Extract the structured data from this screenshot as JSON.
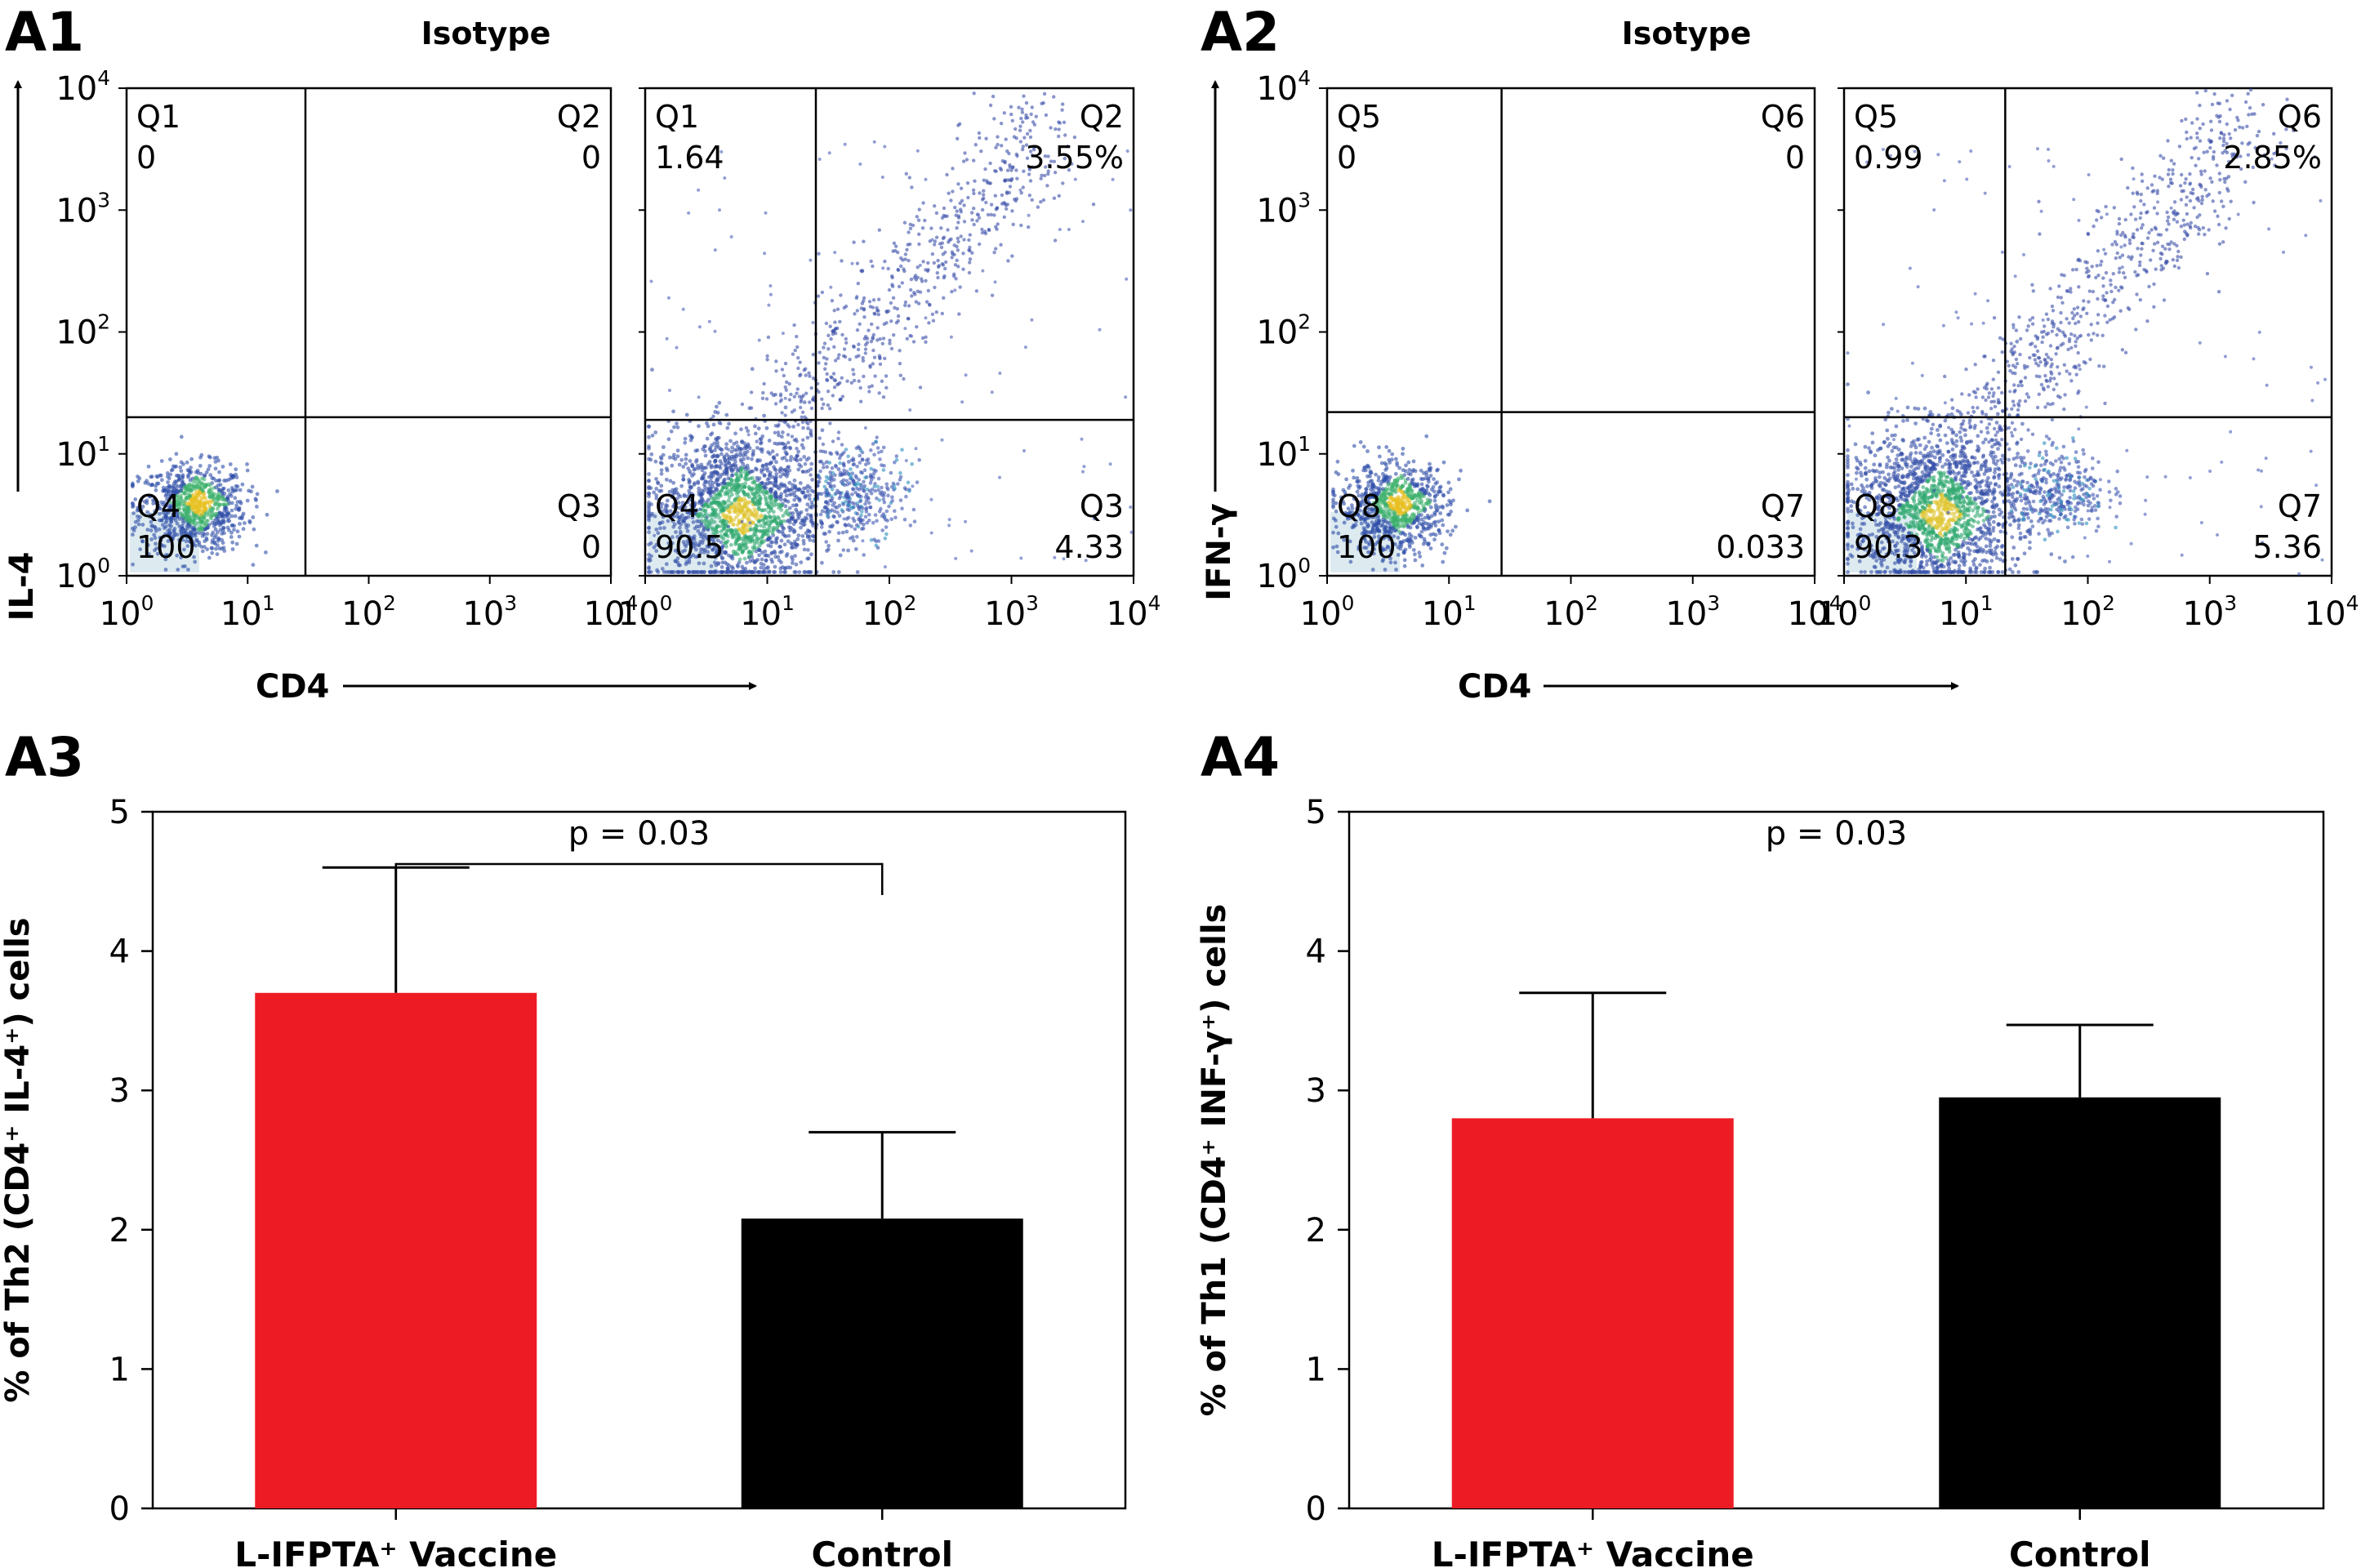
{
  "panels": {
    "a1": "A1",
    "a2": "A2",
    "a3": "A3",
    "a4": "A4"
  },
  "flow_titles": {
    "a1": "Isotype",
    "a2": "Isotype"
  },
  "flow_axes": {
    "a1_y": "IL-4",
    "a1_x": "CD4",
    "a2_y": "IFN-γ",
    "a2_x": "CD4"
  },
  "chart_data": [
    {
      "id": "A1-isotype",
      "type": "scatter",
      "title": "Isotype",
      "xlabel": "CD4",
      "ylabel": "IL-4",
      "xscale": "log",
      "yscale": "log",
      "xlim": [
        1,
        10000
      ],
      "ylim": [
        1,
        10000
      ],
      "gates": {
        "x": 30,
        "y": 20
      },
      "quadrants": [
        {
          "name": "Q1",
          "value": "0",
          "pos": "top-left"
        },
        {
          "name": "Q2",
          "value": "0",
          "pos": "top-right"
        },
        {
          "name": "Q4",
          "value": "100",
          "pos": "bottom-left"
        },
        {
          "name": "Q3",
          "value": "0",
          "pos": "bottom-right"
        }
      ]
    },
    {
      "id": "A1-sample",
      "type": "scatter",
      "xlabel": "CD4",
      "ylabel": "IL-4",
      "xscale": "log",
      "yscale": "log",
      "xlim": [
        1,
        10000
      ],
      "ylim": [
        1,
        10000
      ],
      "gates": {
        "x": 25,
        "y": 19
      },
      "quadrants": [
        {
          "name": "Q1",
          "value": "1.64",
          "pos": "top-left"
        },
        {
          "name": "Q2",
          "value": "3.55%",
          "pos": "top-right"
        },
        {
          "name": "Q4",
          "value": "90.5",
          "pos": "bottom-left"
        },
        {
          "name": "Q3",
          "value": "4.33",
          "pos": "bottom-right"
        }
      ]
    },
    {
      "id": "A2-isotype",
      "type": "scatter",
      "title": "Isotype",
      "xlabel": "CD4",
      "ylabel": "IFN-γ",
      "xscale": "log",
      "yscale": "log",
      "xlim": [
        1,
        10000
      ],
      "ylim": [
        1,
        10000
      ],
      "gates": {
        "x": 27,
        "y": 22
      },
      "quadrants": [
        {
          "name": "Q5",
          "value": "0",
          "pos": "top-left"
        },
        {
          "name": "Q6",
          "value": "0",
          "pos": "top-right"
        },
        {
          "name": "Q8",
          "value": "100",
          "pos": "bottom-left"
        },
        {
          "name": "Q7",
          "value": "0.033",
          "pos": "bottom-right"
        }
      ]
    },
    {
      "id": "A2-sample",
      "type": "scatter",
      "xlabel": "CD4",
      "ylabel": "IFN-γ",
      "xscale": "log",
      "yscale": "log",
      "xlim": [
        1,
        10000
      ],
      "ylim": [
        1,
        10000
      ],
      "gates": {
        "x": 21,
        "y": 20
      },
      "quadrants": [
        {
          "name": "Q5",
          "value": "0.99",
          "pos": "top-left"
        },
        {
          "name": "Q6",
          "value": "2.85%",
          "pos": "top-right"
        },
        {
          "name": "Q8",
          "value": "90.3",
          "pos": "bottom-left"
        },
        {
          "name": "Q7",
          "value": "5.36",
          "pos": "bottom-right"
        }
      ]
    },
    {
      "id": "A3",
      "type": "bar",
      "categories": [
        "L-IFPTA⁺ Vaccine",
        "Control"
      ],
      "values": [
        3.7,
        2.08
      ],
      "errors": [
        0.9,
        0.62
      ],
      "colors": [
        "#ed1c24",
        "#000000"
      ],
      "ylabel": "% of Th2 (CD4⁺ IL-4⁺) cells",
      "ylim": [
        0,
        5
      ],
      "yticks": [
        0,
        1,
        2,
        3,
        4,
        5
      ],
      "annotation": "p = 0.03",
      "bracket": true
    },
    {
      "id": "A4",
      "type": "bar",
      "categories": [
        "L-IFPTA⁺ Vaccine",
        "Control"
      ],
      "values": [
        2.8,
        2.95
      ],
      "errors": [
        0.9,
        0.52
      ],
      "colors": [
        "#ed1c24",
        "#000000"
      ],
      "ylabel": "% of Th1 (CD4⁺ INF-γ⁺) cells",
      "ylim": [
        0,
        5
      ],
      "yticks": [
        0,
        1,
        2,
        3,
        4,
        5
      ],
      "annotation": "p = 0.03",
      "bracket": false
    }
  ]
}
